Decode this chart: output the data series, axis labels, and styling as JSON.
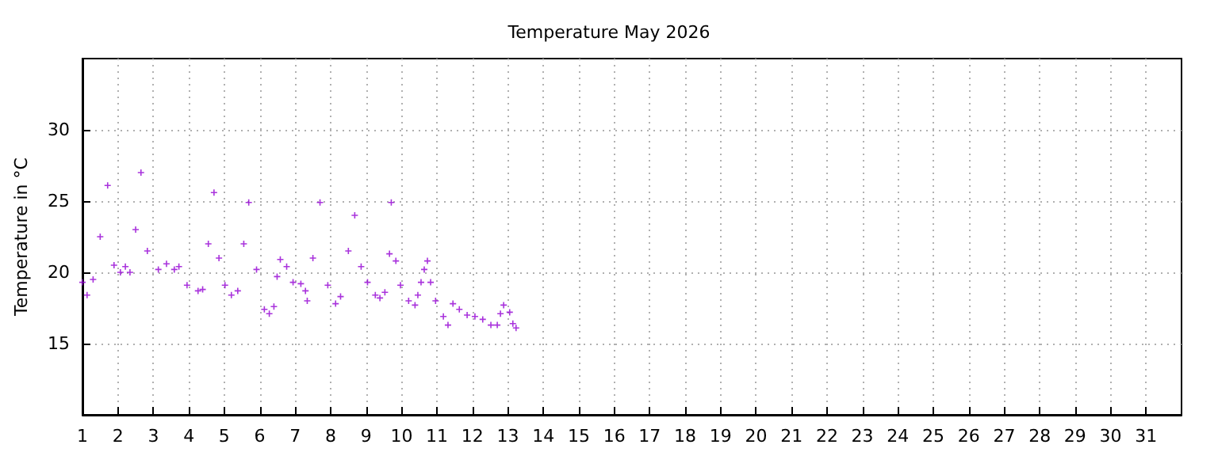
{
  "chart_data": {
    "type": "scatter",
    "title": "Temperature May 2026",
    "ylabel": "Temperature in °C",
    "color": "#9400d3",
    "marker": "cross",
    "grid": true,
    "x": [
      1.0,
      1.13,
      1.3,
      1.5,
      1.71,
      1.89,
      2.07,
      2.21,
      2.34,
      2.5,
      2.65,
      2.83,
      3.14,
      3.37,
      3.59,
      3.72,
      3.95,
      4.26,
      4.39,
      4.55,
      4.71,
      4.85,
      5.02,
      5.2,
      5.38,
      5.55,
      5.69,
      5.91,
      6.13,
      6.27,
      6.4,
      6.49,
      6.58,
      6.76,
      6.94,
      7.16,
      7.29,
      7.34,
      7.5,
      7.7,
      7.92,
      8.14,
      8.28,
      8.5,
      8.68,
      8.86,
      9.04,
      9.26,
      9.39,
      9.53,
      9.66,
      9.71,
      9.84,
      9.97,
      10.2,
      10.38,
      10.46,
      10.55,
      10.64,
      10.73,
      10.82,
      10.96,
      11.18,
      11.31,
      11.45,
      11.63,
      11.85,
      12.07,
      12.29,
      12.52,
      12.7,
      12.79,
      12.88,
      13.05,
      13.14,
      13.23
    ],
    "values": [
      19.3,
      18.4,
      19.5,
      22.5,
      26.1,
      20.5,
      20.0,
      20.4,
      20.0,
      23.0,
      27.0,
      21.5,
      20.2,
      20.6,
      20.2,
      20.4,
      19.1,
      18.7,
      18.8,
      22.0,
      25.6,
      21.0,
      19.1,
      18.4,
      18.7,
      22.0,
      24.9,
      20.2,
      17.4,
      17.1,
      17.6,
      19.7,
      20.9,
      20.4,
      19.3,
      19.2,
      18.7,
      18.0,
      21.0,
      24.9,
      19.1,
      17.8,
      18.3,
      21.5,
      24.0,
      20.4,
      19.3,
      18.4,
      18.2,
      18.6,
      21.3,
      24.9,
      20.8,
      19.1,
      18.0,
      17.7,
      18.4,
      19.3,
      20.2,
      20.8,
      19.3,
      18.0,
      16.9,
      16.3,
      17.8,
      17.4,
      17.0,
      16.9,
      16.7,
      16.3,
      16.3,
      17.1,
      17.7,
      17.2,
      16.4,
      16.1
    ],
    "xlim": [
      1,
      32
    ],
    "xticks": [
      1,
      2,
      3,
      4,
      5,
      6,
      7,
      8,
      9,
      10,
      11,
      12,
      13,
      14,
      15,
      16,
      17,
      18,
      19,
      20,
      21,
      22,
      23,
      24,
      25,
      26,
      27,
      28,
      29,
      30,
      31
    ],
    "ylim": [
      10,
      35
    ],
    "yticks": [
      15,
      20,
      25,
      30
    ]
  }
}
